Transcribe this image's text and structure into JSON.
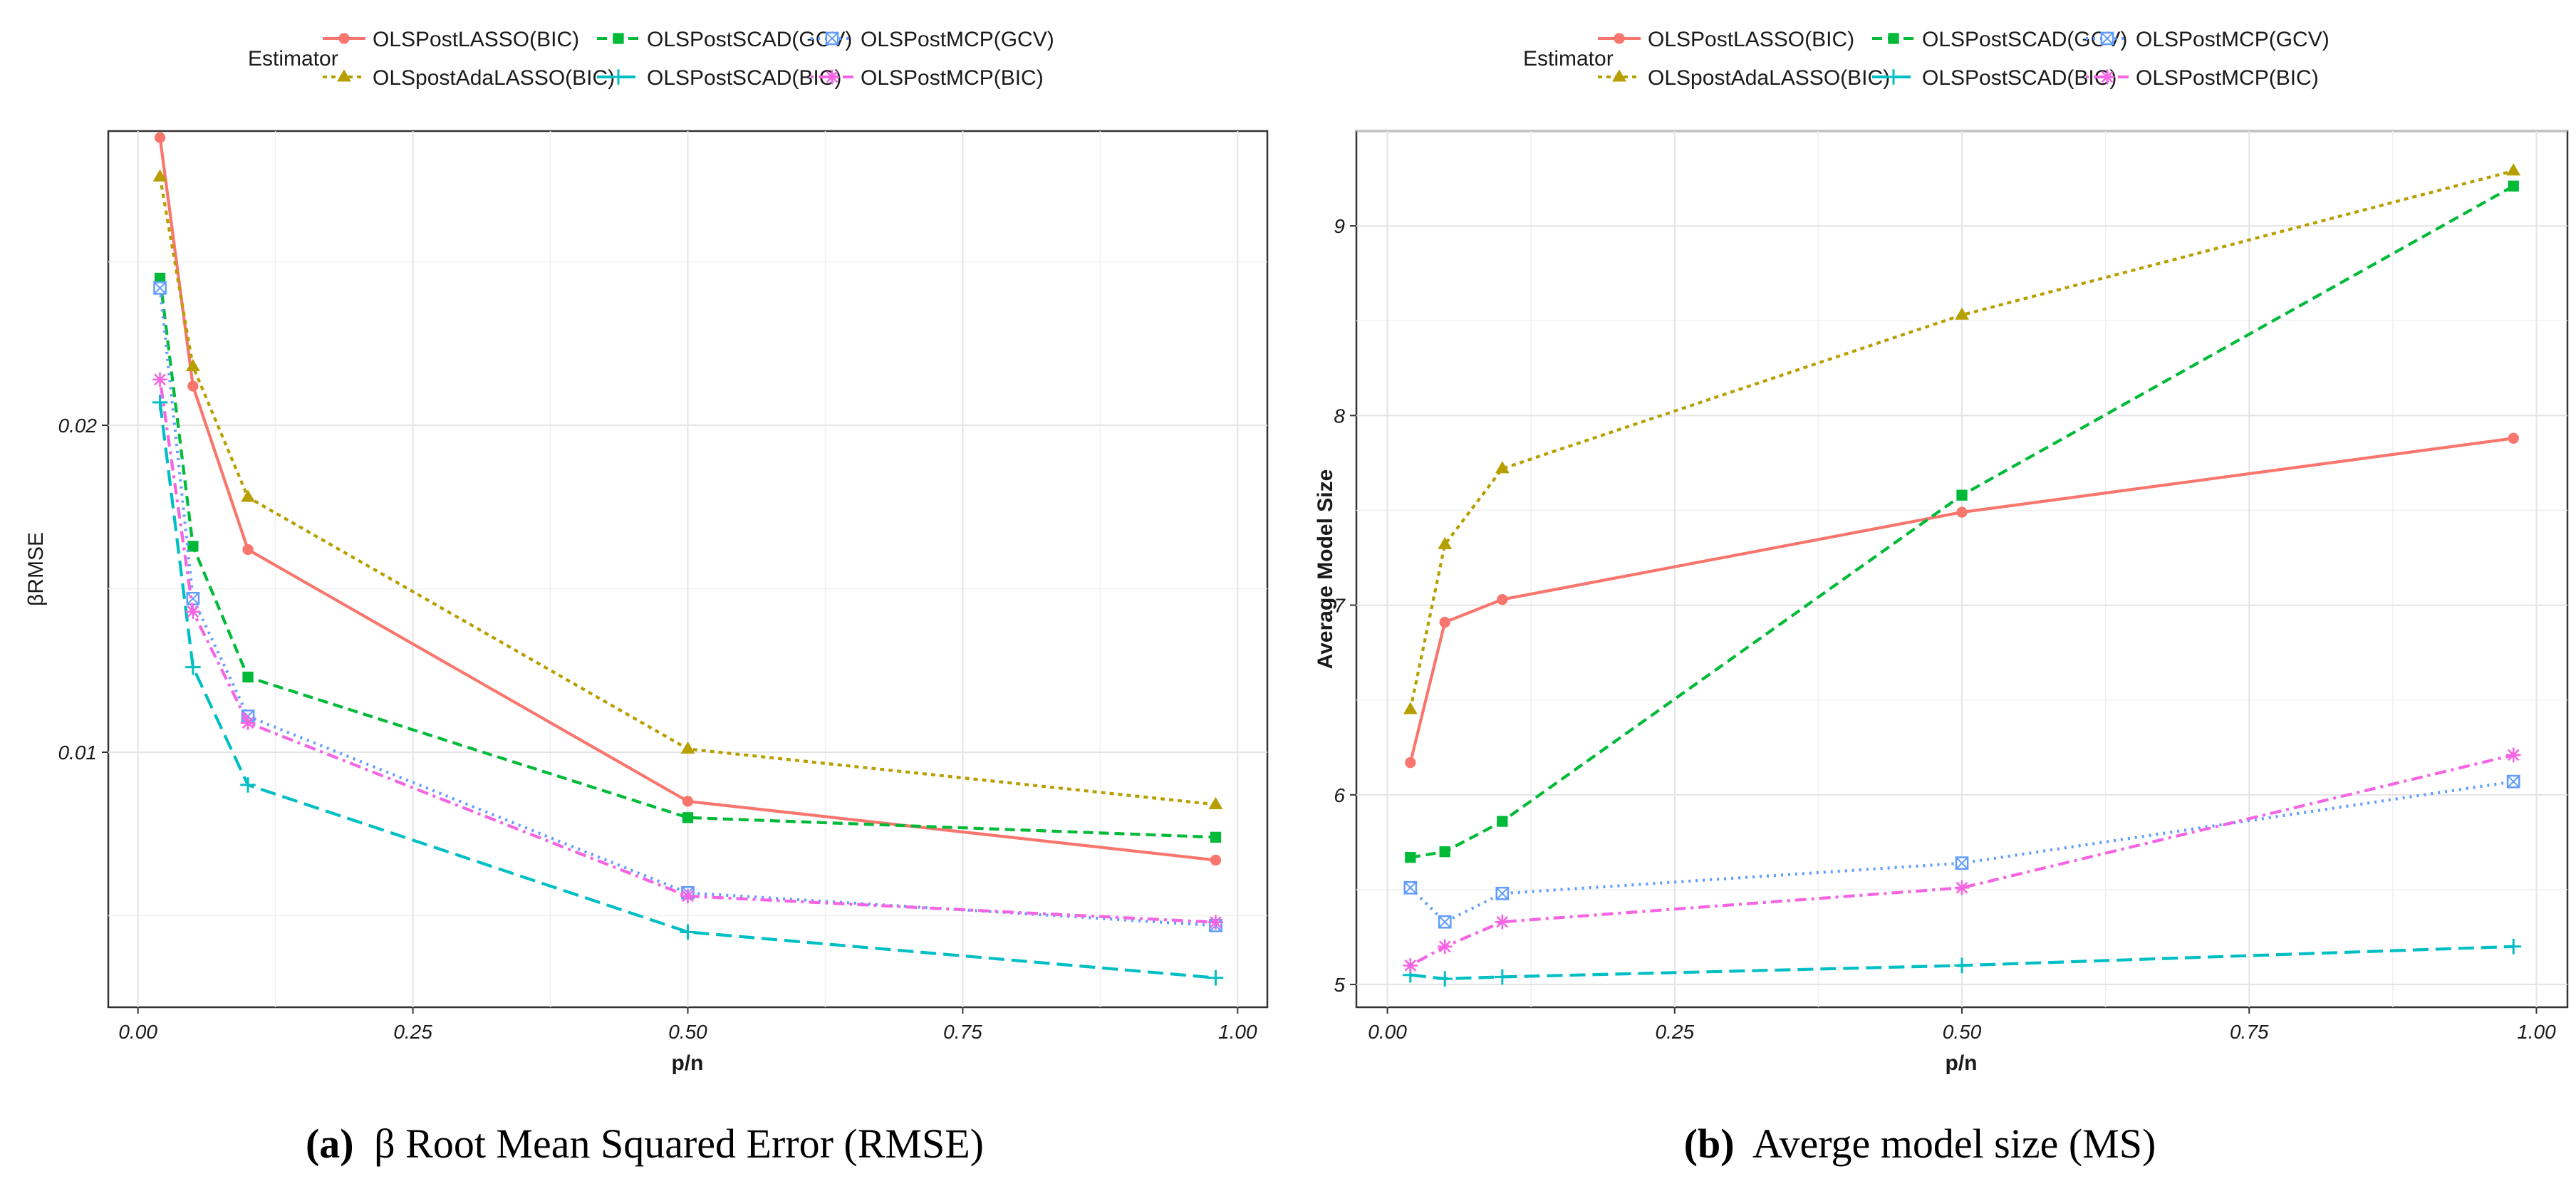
{
  "colors": {
    "OLSPostLASSO(BIC)": "#F8766D",
    "OLSpostAdaLASSO(BIC)": "#B79F00",
    "OLSPostSCAD(GCV)": "#00BA38",
    "OLSPostSCAD(BIC)": "#00BFC4",
    "OLSPostMCP(GCV)": "#619CFF",
    "OLSPostMCP(BIC)": "#F564E3"
  },
  "legend": {
    "title": "Estimator",
    "entries": [
      {
        "label": "OLSPostLASSO(BIC)",
        "marker": "circle",
        "dash": "solid"
      },
      {
        "label": "OLSpostAdaLASSO(BIC)",
        "marker": "triangle",
        "dash": "dotted"
      },
      {
        "label": "OLSPostSCAD(GCV)",
        "marker": "square",
        "dash": "dashed"
      },
      {
        "label": "OLSPostSCAD(BIC)",
        "marker": "plus",
        "dash": "longdash"
      },
      {
        "label": "OLSPostMCP(GCV)",
        "marker": "boxcross",
        "dash": "dotted-fine"
      },
      {
        "label": "OLSPostMCP(BIC)",
        "marker": "asterisk",
        "dash": "dotdash"
      }
    ]
  },
  "chart_data": [
    {
      "type": "line",
      "panel": "a",
      "caption": {
        "label": "(a)",
        "text": "β Root Mean Squared Error (RMSE)"
      },
      "xlabel": "p/n",
      "ylabel": "βRMSE",
      "xlim": [
        -0.027,
        1.027
      ],
      "ylim": [
        0.0022,
        0.029
      ],
      "xticks": [
        0.0,
        0.25,
        0.5,
        0.75,
        1.0
      ],
      "xtick_labels": [
        "0.00",
        "0.25",
        "0.50",
        "0.75",
        "1.00"
      ],
      "yticks": [
        0.01,
        0.02
      ],
      "ytick_labels": [
        "0.01",
        "0.02"
      ],
      "grid": true,
      "x": [
        0.02,
        0.05,
        0.1,
        0.5,
        0.98
      ],
      "series": [
        {
          "name": "OLSPostLASSO(BIC)",
          "values": [
            0.0288,
            0.0212,
            0.0162,
            0.0085,
            0.0067
          ]
        },
        {
          "name": "OLSpostAdaLASSO(BIC)",
          "values": [
            0.0276,
            0.0218,
            0.0178,
            0.0101,
            0.0084
          ]
        },
        {
          "name": "OLSPostSCAD(GCV)",
          "values": [
            0.0245,
            0.0163,
            0.0123,
            0.008,
            0.0074
          ]
        },
        {
          "name": "OLSPostSCAD(BIC)",
          "values": [
            0.0207,
            0.0126,
            0.009,
            0.0045,
            0.0031
          ]
        },
        {
          "name": "OLSPostMCP(GCV)",
          "values": [
            0.0242,
            0.0147,
            0.0111,
            0.0057,
            0.0047
          ]
        },
        {
          "name": "OLSPostMCP(BIC)",
          "values": [
            0.0214,
            0.0143,
            0.0109,
            0.0056,
            0.0048
          ]
        }
      ]
    },
    {
      "type": "line",
      "panel": "b",
      "caption": {
        "label": "(b)",
        "text": "Averge model size (MS)"
      },
      "xlabel": "p/n",
      "ylabel": "Average Model Size",
      "xlim": [
        -0.027,
        1.027
      ],
      "ylim": [
        4.88,
        9.5
      ],
      "xticks": [
        0.0,
        0.25,
        0.5,
        0.75,
        1.0
      ],
      "xtick_labels": [
        "0.00",
        "0.25",
        "0.50",
        "0.75",
        "1.00"
      ],
      "yticks": [
        5,
        6,
        7,
        8,
        9
      ],
      "ytick_labels": [
        "5",
        "6",
        "7",
        "8",
        "9"
      ],
      "grid": true,
      "x": [
        0.02,
        0.05,
        0.1,
        0.5,
        0.98
      ],
      "series": [
        {
          "name": "OLSPostLASSO(BIC)",
          "values": [
            6.17,
            6.91,
            7.03,
            7.49,
            7.88
          ]
        },
        {
          "name": "OLSpostAdaLASSO(BIC)",
          "values": [
            6.45,
            7.32,
            7.72,
            8.53,
            9.29
          ]
        },
        {
          "name": "OLSPostSCAD(GCV)",
          "values": [
            5.67,
            5.7,
            5.86,
            7.58,
            9.21
          ]
        },
        {
          "name": "OLSPostSCAD(BIC)",
          "values": [
            5.05,
            5.03,
            5.04,
            5.1,
            5.2
          ]
        },
        {
          "name": "OLSPostMCP(GCV)",
          "values": [
            5.51,
            5.33,
            5.48,
            5.64,
            6.07
          ]
        },
        {
          "name": "OLSPostMCP(BIC)",
          "values": [
            5.1,
            5.2,
            5.33,
            5.51,
            6.21
          ]
        }
      ]
    }
  ]
}
